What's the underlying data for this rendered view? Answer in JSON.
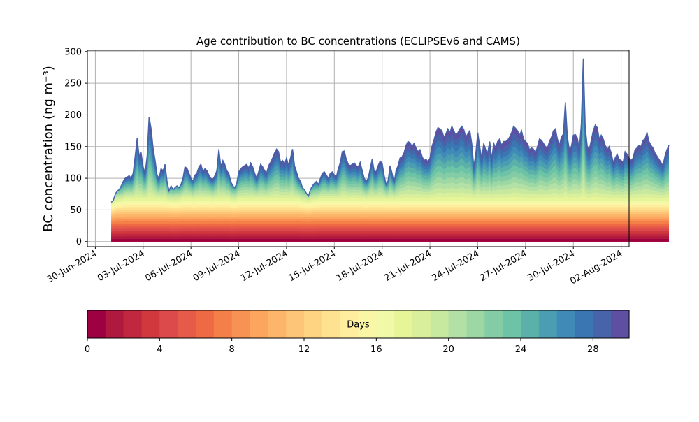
{
  "chart_data": {
    "type": "area",
    "title": "Age contribution to BC concentrations (ECLIPSEv6 and CAMS)",
    "ylabel": "BC concentration (ng m⁻³)",
    "xlabel": "",
    "xlim": [
      "2024-06-29T12:00",
      "2024-08-02T12:00"
    ],
    "ylim": [
      -8,
      302
    ],
    "yticks": [
      0,
      50,
      100,
      150,
      200,
      250,
      300
    ],
    "xticks": [
      "30-Jun-2024",
      "03-Jul-2024",
      "06-Jul-2024",
      "09-Jul-2024",
      "12-Jul-2024",
      "15-Jul-2024",
      "18-Jul-2024",
      "21-Jul-2024",
      "24-Jul-2024",
      "27-Jul-2024",
      "30-Jul-2024",
      "02-Aug-2024"
    ],
    "grid": true,
    "stack_layers": 30,
    "colormap": "Spectral",
    "x_start": "2024-07-01T00:00",
    "x_step_hours": 3,
    "total": [
      62,
      65,
      75,
      80,
      82,
      88,
      95,
      100,
      102,
      104,
      100,
      108,
      135,
      163,
      135,
      140,
      118,
      108,
      135,
      197,
      178,
      148,
      128,
      105,
      100,
      115,
      112,
      122,
      95,
      80,
      88,
      82,
      85,
      88,
      85,
      90,
      100,
      118,
      116,
      108,
      100,
      95,
      105,
      108,
      118,
      122,
      110,
      115,
      112,
      105,
      100,
      98,
      104,
      112,
      146,
      118,
      128,
      122,
      112,
      108,
      95,
      88,
      85,
      92,
      110,
      115,
      118,
      120,
      122,
      116,
      124,
      118,
      108,
      100,
      110,
      122,
      118,
      112,
      108,
      120,
      125,
      132,
      140,
      146,
      142,
      125,
      128,
      122,
      132,
      120,
      132,
      146,
      120,
      110,
      100,
      95,
      85,
      82,
      76,
      72,
      82,
      88,
      92,
      95,
      90,
      100,
      108,
      110,
      105,
      100,
      108,
      110,
      105,
      102,
      115,
      125,
      142,
      143,
      130,
      122,
      120,
      122,
      124,
      120,
      118,
      125,
      112,
      100,
      95,
      100,
      115,
      130,
      112,
      110,
      120,
      127,
      124,
      105,
      90,
      96,
      120,
      108,
      92,
      112,
      120,
      132,
      134,
      140,
      152,
      158,
      156,
      150,
      155,
      148,
      142,
      145,
      135,
      128,
      130,
      126,
      132,
      150,
      160,
      172,
      180,
      178,
      175,
      165,
      170,
      178,
      172,
      182,
      175,
      168,
      172,
      178,
      182,
      177,
      165,
      170,
      175,
      155,
      118,
      138,
      172,
      150,
      130,
      155,
      145,
      140,
      158,
      130,
      155,
      148,
      158,
      162,
      152,
      158,
      158,
      160,
      165,
      172,
      182,
      179,
      175,
      168,
      175,
      162,
      158,
      155,
      145,
      148,
      146,
      140,
      150,
      162,
      160,
      155,
      150,
      148,
      158,
      165,
      175,
      178,
      162,
      152,
      165,
      170,
      220,
      165,
      145,
      150,
      168,
      169,
      164,
      145,
      185,
      289,
      180,
      150,
      145,
      160,
      175,
      184,
      180,
      162,
      168,
      162,
      152,
      145,
      150,
      140,
      125,
      132,
      138,
      130,
      128,
      125,
      142,
      138,
      132,
      128,
      132,
      145,
      148,
      152,
      150,
      160,
      162,
      172,
      158,
      152,
      148,
      140,
      135,
      130,
      125,
      120,
      135,
      145,
      152
    ]
  },
  "colorbar": {
    "label": "Days",
    "min": 0,
    "max": 30,
    "ticks": [
      0,
      4,
      8,
      12,
      16,
      20,
      24,
      28
    ],
    "colors": [
      "#9e0142",
      "#b0193f",
      "#c1283f",
      "#d0383e",
      "#dc4a4c",
      "#e55a49",
      "#ee6a45",
      "#f57f48",
      "#f89154",
      "#fca55e",
      "#fdb56a",
      "#fdc577",
      "#fed482",
      "#fee191",
      "#feee9e",
      "#f9f7a6",
      "#f1f9a9",
      "#e6f598",
      "#d9ef9b",
      "#c6e89f",
      "#b3e0a5",
      "#9cd7a4",
      "#83cca5",
      "#6dc3a5",
      "#5bb1a9",
      "#4b9eb2",
      "#3f8ab7",
      "#3976b2",
      "#4763a9",
      "#5e4fa2"
    ]
  }
}
